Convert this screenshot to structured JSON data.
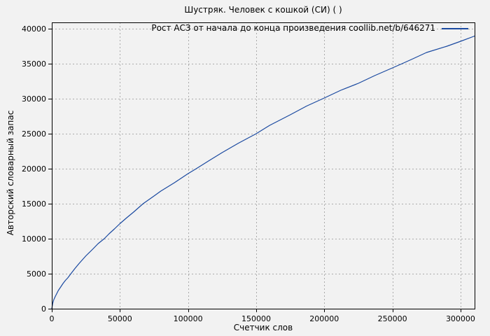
{
  "window": {
    "background": "#f2f2f2"
  },
  "chart_data": {
    "type": "line",
    "title": "Шустряк. Человек с кошкой (СИ) ( )",
    "xlabel": "Счетчик слов",
    "ylabel": "Авторский словарный запас",
    "grid": true,
    "legend_position": "top-right-inside",
    "xlim": [
      0,
      310300
    ],
    "ylim": [
      0,
      40900
    ],
    "xticks": {
      "values": [
        0,
        50000,
        100000,
        150000,
        200000,
        250000,
        300000
      ],
      "labels": [
        "0",
        "50000",
        "100000",
        "150000",
        "200000",
        "250000",
        "300000"
      ]
    },
    "yticks": {
      "values": [
        0,
        5000,
        10000,
        15000,
        20000,
        25000,
        30000,
        35000,
        40000
      ],
      "labels": [
        "0",
        "5000",
        "10000",
        "15000",
        "20000",
        "25000",
        "30000",
        "35000",
        "40000"
      ]
    },
    "series": [
      {
        "name": "Рост АСЗ от начала до конца произведения coollib.net/b/646271",
        "color": "#1a49a0",
        "points": [
          [
            0,
            0
          ],
          [
            700,
            800
          ],
          [
            1500,
            1300
          ],
          [
            2300,
            1650
          ],
          [
            3100,
            1950
          ],
          [
            4000,
            2300
          ],
          [
            4800,
            2600
          ],
          [
            6500,
            3100
          ],
          [
            8200,
            3600
          ],
          [
            10000,
            4050
          ],
          [
            11700,
            4400
          ],
          [
            14000,
            5000
          ],
          [
            17000,
            5750
          ],
          [
            20000,
            6450
          ],
          [
            25000,
            7550
          ],
          [
            30000,
            8500
          ],
          [
            34000,
            9300
          ],
          [
            38500,
            10000
          ],
          [
            42000,
            10700
          ],
          [
            46000,
            11400
          ],
          [
            50000,
            12150
          ],
          [
            55000,
            13000
          ],
          [
            60000,
            13800
          ],
          [
            67000,
            15000
          ],
          [
            75000,
            16100
          ],
          [
            80000,
            16800
          ],
          [
            90000,
            18000
          ],
          [
            100000,
            19300
          ],
          [
            106000,
            20000
          ],
          [
            115000,
            21100
          ],
          [
            125000,
            22300
          ],
          [
            137000,
            23650
          ],
          [
            150000,
            25000
          ],
          [
            160000,
            26200
          ],
          [
            175000,
            27700
          ],
          [
            187000,
            28950
          ],
          [
            200000,
            30100
          ],
          [
            212000,
            31200
          ],
          [
            225000,
            32200
          ],
          [
            237000,
            33300
          ],
          [
            250000,
            34400
          ],
          [
            257000,
            35000
          ],
          [
            265000,
            35700
          ],
          [
            275000,
            36600
          ],
          [
            290000,
            37500
          ],
          [
            300000,
            38200
          ],
          [
            310300,
            38950
          ]
        ]
      }
    ],
    "colors": {
      "line": "#1a49a0",
      "grid": "#ababab",
      "border": "#000000",
      "background": "#f2f2f2"
    }
  }
}
